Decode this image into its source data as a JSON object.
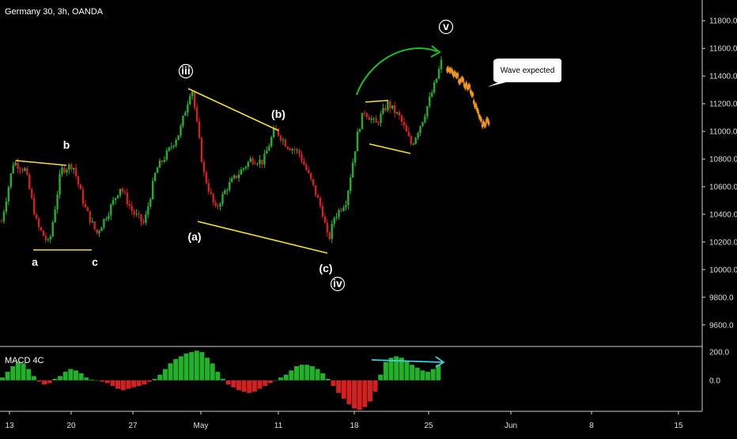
{
  "chart_data": {
    "type": "candlestick",
    "title": "Germany 30, 3h, OANDA",
    "price_axis": {
      "ylim": [
        9450,
        11950
      ],
      "ticks": [
        "11800.0",
        "11600.0",
        "11400.0",
        "11200.0",
        "11000.0",
        "10800.0",
        "10600.0",
        "10400.0",
        "10200.0",
        "10000.0",
        "9800.0",
        "9600.0"
      ]
    },
    "time_axis": {
      "ticks": [
        "13",
        "20",
        "27",
        "May",
        "11",
        "18",
        "25",
        "Jun",
        "8",
        "15"
      ]
    },
    "price_path": [
      {
        "x": 0,
        "y": 10350
      },
      {
        "x": 2,
        "y": 10780
      },
      {
        "x": 4,
        "y": 10720
      },
      {
        "x": 6,
        "y": 10320
      },
      {
        "x": 8,
        "y": 10180
      },
      {
        "x": 10,
        "y": 10720
      },
      {
        "x": 12,
        "y": 10760
      },
      {
        "x": 14,
        "y": 10450
      },
      {
        "x": 16,
        "y": 10260
      },
      {
        "x": 18,
        "y": 10420
      },
      {
        "x": 20,
        "y": 10600
      },
      {
        "x": 22,
        "y": 10420
      },
      {
        "x": 24,
        "y": 10330
      },
      {
        "x": 26,
        "y": 10720
      },
      {
        "x": 28,
        "y": 10850
      },
      {
        "x": 30,
        "y": 11000
      },
      {
        "x": 32,
        "y": 11330
      },
      {
        "x": 34,
        "y": 10700
      },
      {
        "x": 36,
        "y": 10430
      },
      {
        "x": 38,
        "y": 10600
      },
      {
        "x": 40,
        "y": 10700
      },
      {
        "x": 42,
        "y": 10800
      },
      {
        "x": 44,
        "y": 10780
      },
      {
        "x": 46,
        "y": 11020
      },
      {
        "x": 48,
        "y": 10900
      },
      {
        "x": 50,
        "y": 10850
      },
      {
        "x": 52,
        "y": 10650
      },
      {
        "x": 54,
        "y": 10420
      },
      {
        "x": 55,
        "y": 10200
      },
      {
        "x": 56,
        "y": 10380
      },
      {
        "x": 58,
        "y": 10500
      },
      {
        "x": 60,
        "y": 11000
      },
      {
        "x": 61,
        "y": 11150
      },
      {
        "x": 63,
        "y": 11050
      },
      {
        "x": 65,
        "y": 11200
      },
      {
        "x": 67,
        "y": 11100
      },
      {
        "x": 69,
        "y": 10900
      },
      {
        "x": 71,
        "y": 11100
      },
      {
        "x": 73,
        "y": 11350
      },
      {
        "x": 74,
        "y": 11500
      }
    ],
    "expected_path": [
      {
        "x": 75,
        "y": 11450
      },
      {
        "x": 77,
        "y": 11380
      },
      {
        "x": 79,
        "y": 11300
      },
      {
        "x": 80,
        "y": 11150
      },
      {
        "x": 81,
        "y": 11050
      },
      {
        "x": 82,
        "y": 11080
      }
    ],
    "wave_labels": [
      "a",
      "b",
      "c",
      "iii",
      "(a)",
      "(b)",
      "(c)",
      "iv",
      "v"
    ],
    "callout": "Wave expected",
    "indicator": {
      "name": "MACD 4C",
      "ticks": [
        "200.0",
        "0.0"
      ],
      "ylim": [
        -220,
        240
      ],
      "histogram": [
        20,
        60,
        100,
        130,
        120,
        80,
        30,
        -10,
        -30,
        -20,
        10,
        30,
        60,
        80,
        70,
        50,
        20,
        5,
        0,
        -10,
        -20,
        -40,
        -60,
        -70,
        -60,
        -50,
        -40,
        -30,
        -10,
        10,
        40,
        80,
        120,
        150,
        170,
        190,
        200,
        210,
        200,
        160,
        120,
        60,
        10,
        -30,
        -50,
        -70,
        -80,
        -90,
        -80,
        -60,
        -40,
        -20,
        0,
        20,
        40,
        70,
        100,
        110,
        110,
        100,
        80,
        50,
        10,
        -40,
        -90,
        -130,
        -170,
        -200,
        -210,
        -190,
        -150,
        -80,
        40,
        130,
        160,
        170,
        160,
        140,
        110,
        90,
        70,
        60,
        80,
        110
      ],
      "colors": {
        "up": "#22b12b",
        "down": "#d32020"
      }
    },
    "annotation_colors": {
      "trendline": "#f5e130",
      "arrow": "#1bbf23",
      "divergence": "#3fcde0",
      "expected": "#f0961e"
    },
    "grid": false,
    "legend": "none"
  }
}
